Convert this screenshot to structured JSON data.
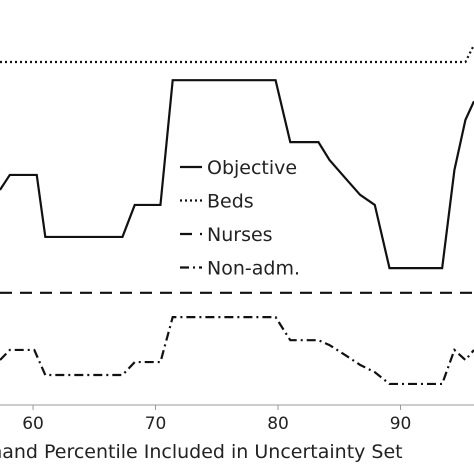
{
  "chart_data": {
    "type": "line",
    "xlabel": "Demand Percentile Included in Uncertainty Set",
    "xlim": [
      57.3,
      96.0
    ],
    "xticks": [
      60,
      70,
      80,
      90
    ],
    "ylim": [
      0,
      100
    ],
    "legend": "center",
    "series": [
      {
        "name": "Objective",
        "color": "#111111",
        "dash": "solid",
        "x": [
          57.3,
          58.1,
          60.3,
          61.0,
          67.3,
          68.3,
          70.4,
          71.4,
          79.8,
          81.0,
          83.3,
          84.2,
          85.5,
          86.7,
          87.9,
          89.1,
          93.4,
          94.4,
          95.3,
          96.0
        ],
        "values": [
          53.1,
          56.8,
          56.8,
          41.5,
          41.5,
          49.4,
          49.4,
          80.2,
          80.2,
          64.9,
          64.9,
          60.5,
          56.0,
          51.9,
          49.4,
          33.8,
          33.8,
          58.0,
          70.4,
          75.0
        ]
      },
      {
        "name": "Beds",
        "color": "#111111",
        "dash": "dotted",
        "x": [
          57.3,
          95.3,
          96.0
        ],
        "values": [
          84.7,
          84.7,
          88.9
        ]
      },
      {
        "name": "Nurses",
        "color": "#111111",
        "dash": "dashed",
        "x": [
          57.3,
          96.0
        ],
        "values": [
          27.7,
          27.7
        ]
      },
      {
        "name": "Non-adm.",
        "color": "#111111",
        "dash": "dashdot",
        "x": [
          57.3,
          58.1,
          60.1,
          61.0,
          67.3,
          68.3,
          70.4,
          71.4,
          79.8,
          81.0,
          83.3,
          84.2,
          85.5,
          86.7,
          87.9,
          89.1,
          93.4,
          94.4,
          95.3,
          96.0
        ],
        "values": [
          11.1,
          13.6,
          13.6,
          7.4,
          7.4,
          10.6,
          10.6,
          21.7,
          21.7,
          16.0,
          16.0,
          14.8,
          12.3,
          9.9,
          8.1,
          5.2,
          5.2,
          13.6,
          11.1,
          13.6
        ]
      }
    ]
  }
}
